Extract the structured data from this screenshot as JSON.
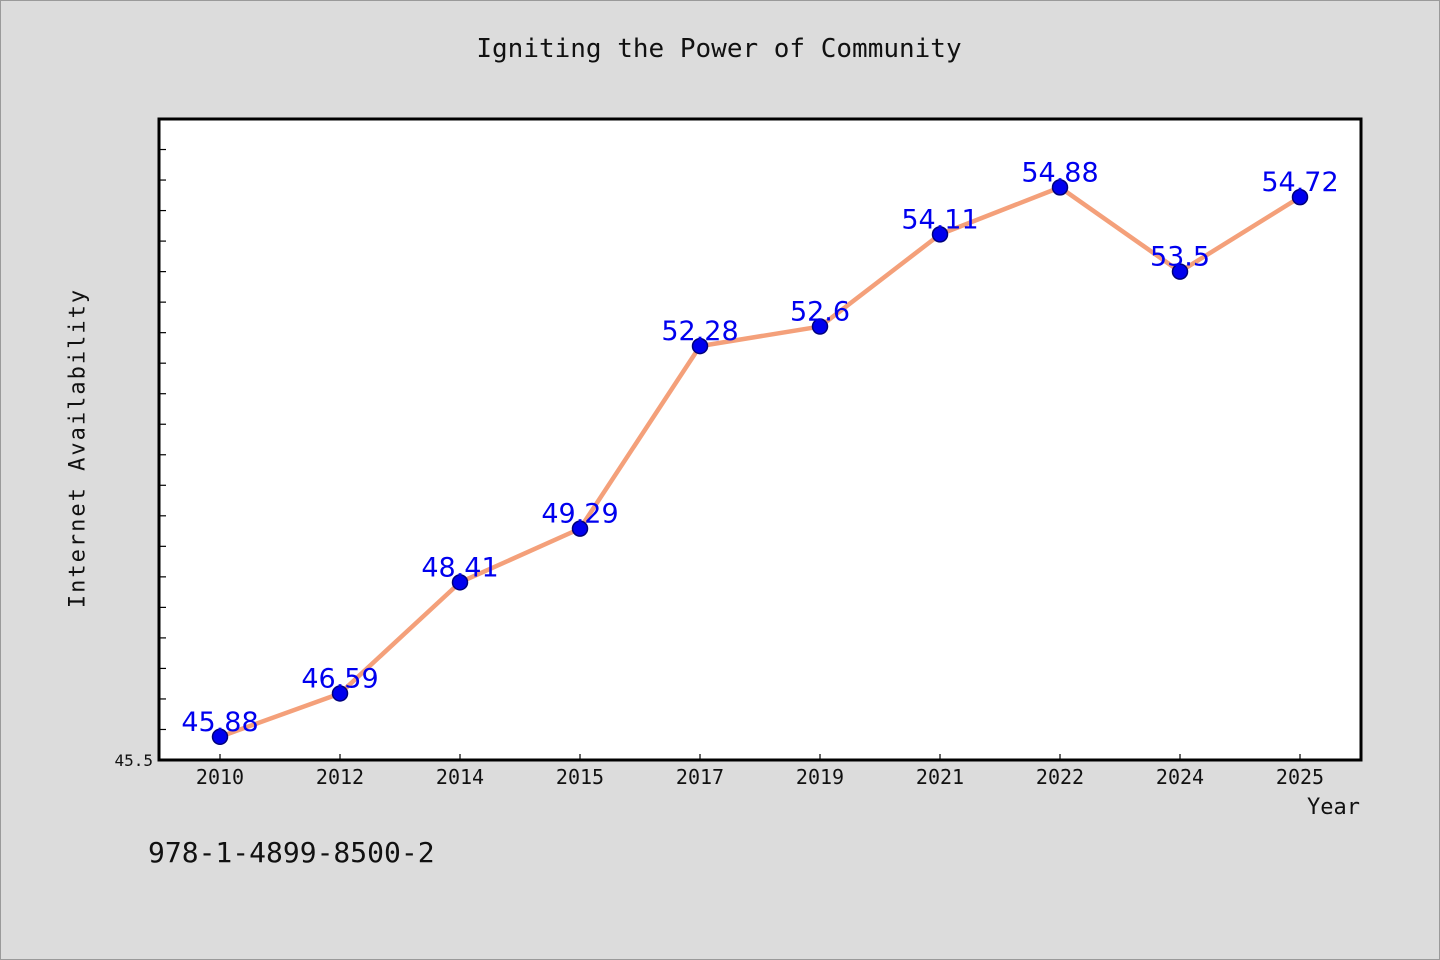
{
  "chart_data": {
    "type": "line",
    "title": "Igniting the Power of Community",
    "xlabel": "Year",
    "ylabel": "Internet Availability",
    "categories": [
      "2010",
      "2012",
      "2014",
      "2015",
      "2017",
      "2019",
      "2021",
      "2022",
      "2024",
      "2025"
    ],
    "series": [
      {
        "values": [
          45.88,
          46.59,
          48.41,
          49.29,
          52.28,
          52.6,
          54.11,
          54.88,
          53.5,
          54.72
        ],
        "data_labels": [
          "45.88",
          "46.59",
          "48.41",
          "49.29",
          "52.28",
          "52.6",
          "54.11",
          "54.88",
          "53.5",
          "54.72"
        ]
      }
    ],
    "ylim": [
      45.5,
      56.0
    ],
    "y_tick_labels": [
      "45.5"
    ],
    "grid": false,
    "legend": "none",
    "colors": {
      "line": "#f4a07a",
      "marker": "#0000ee",
      "marker_edge": "#00007a",
      "label": "#0000ee",
      "background": "#dcdcdc",
      "plot_background": "#ffffff"
    }
  },
  "footer": {
    "isbn": "978-1-4899-8500-2"
  }
}
